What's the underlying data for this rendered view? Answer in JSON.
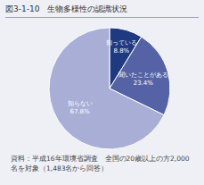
{
  "chart_data": {
    "type": "pie",
    "title": "図3-1-10　生物多様性の認識状況",
    "categories": [
      "知っている",
      "聞いたことがある",
      "知らない"
    ],
    "values": [
      8.8,
      23.4,
      67.8
    ],
    "value_labels": [
      "8.8%",
      "23.4%",
      "67.8%"
    ],
    "colors": [
      "#1f3a80",
      "#5563a6",
      "#a9aed6"
    ],
    "data_labels": true,
    "note": "資料：平成16年環境省調査　全国の20歳以上の方2,000名を対象（1,483名から回答）"
  }
}
